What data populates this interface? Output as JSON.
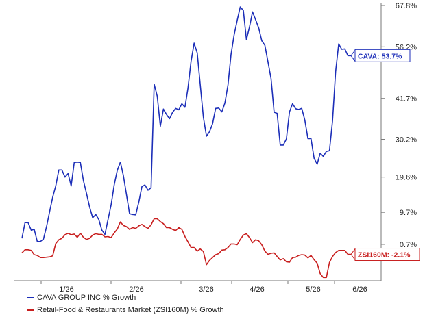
{
  "chart_data": {
    "type": "line",
    "x_tick_labels": [
      "1/26",
      "2/26",
      "3/26",
      "4/26",
      "5/26",
      "6/26"
    ],
    "y_tick_labels": [
      "67.8%",
      "56.2%",
      "41.7%",
      "30.2%",
      "19.6%",
      "9.7%",
      "0.7%"
    ],
    "y_tick_values": [
      67.8,
      56.2,
      41.7,
      30.2,
      19.6,
      9.7,
      0.7
    ],
    "ylim": [
      -9.5,
      67.8
    ],
    "grid": false,
    "legend_position": "bottom-left",
    "series": [
      {
        "name": "CAVA GROUP INC % Growth",
        "color": "#1c2eb8",
        "end_label": "CAVA: 53.7%",
        "values": [
          2.4,
          6.8,
          6.8,
          4.7,
          4.9,
          1.5,
          1.5,
          2.2,
          5.7,
          9.9,
          14.0,
          17.1,
          21.6,
          21.6,
          19.6,
          20.6,
          17.1,
          23.7,
          23.8,
          23.7,
          18.6,
          15.0,
          11.2,
          8.2,
          9.1,
          7.7,
          4.7,
          3.5,
          7.7,
          11.8,
          17.4,
          21.5,
          23.8,
          20.0,
          14.7,
          9.3,
          9.1,
          9.0,
          12.6,
          16.9,
          17.4,
          15.9,
          16.6,
          45.7,
          42.3,
          33.9,
          38.7,
          37.2,
          36.0,
          37.8,
          38.9,
          38.5,
          40.2,
          39.2,
          44.6,
          52.1,
          57.2,
          54.5,
          45.4,
          36.4,
          31.1,
          32.3,
          34.6,
          38.9,
          39.0,
          37.9,
          40.4,
          45.5,
          54.0,
          59.5,
          63.6,
          67.4,
          66.4,
          58.2,
          61.8,
          66.0,
          63.8,
          61.5,
          57.9,
          56.6,
          52.0,
          47.3,
          37.8,
          37.5,
          28.6,
          28.6,
          30.3,
          37.9,
          40.2,
          38.8,
          38.6,
          38.9,
          35.6,
          30.4,
          30.4,
          24.9,
          23.2,
          26.3,
          25.4,
          26.8,
          27.0,
          35.4,
          49.2,
          57.0,
          55.5,
          55.6,
          53.7,
          53.7
        ]
      },
      {
        "name": "Retail-Food & Restaurants Market (ZSI160M) % Growth",
        "color": "#c81e1e",
        "end_label": "ZSI160M: -2.1%",
        "values": [
          -1.7,
          -0.8,
          -0.8,
          -1.0,
          -2.2,
          -2.4,
          -3.0,
          -3.0,
          -2.9,
          -2.8,
          -2.5,
          0.9,
          2.0,
          2.4,
          3.4,
          3.8,
          3.4,
          3.6,
          2.7,
          3.8,
          2.7,
          2.1,
          2.4,
          3.3,
          3.7,
          3.5,
          3.5,
          2.8,
          2.9,
          2.6,
          3.9,
          5.0,
          7.0,
          6.0,
          5.7,
          4.9,
          5.4,
          5.2,
          5.9,
          6.3,
          5.7,
          5.2,
          6.2,
          7.9,
          7.9,
          7.1,
          6.5,
          5.4,
          5.4,
          4.9,
          4.6,
          5.4,
          4.9,
          2.9,
          1.4,
          -0.2,
          -0.2,
          -1.2,
          -0.6,
          -1.3,
          -5.0,
          -3.8,
          -3.0,
          -2.2,
          -1.9,
          -0.9,
          -0.8,
          -0.2,
          0.8,
          0.8,
          0.6,
          2.1,
          3.3,
          3.7,
          2.6,
          1.2,
          2.0,
          1.7,
          0.6,
          -1.2,
          -2.1,
          -1.8,
          -1.7,
          -2.7,
          -3.7,
          -3.3,
          -4.2,
          -4.3,
          -3.0,
          -2.9,
          -2.4,
          -2.2,
          -2.3,
          -3.1,
          -2.4,
          -3.6,
          -4.6,
          -7.5,
          -8.6,
          -8.6,
          -4.4,
          -2.7,
          -1.6,
          -1.0,
          -1.0,
          -1.0,
          -2.1,
          -2.1
        ]
      }
    ]
  }
}
